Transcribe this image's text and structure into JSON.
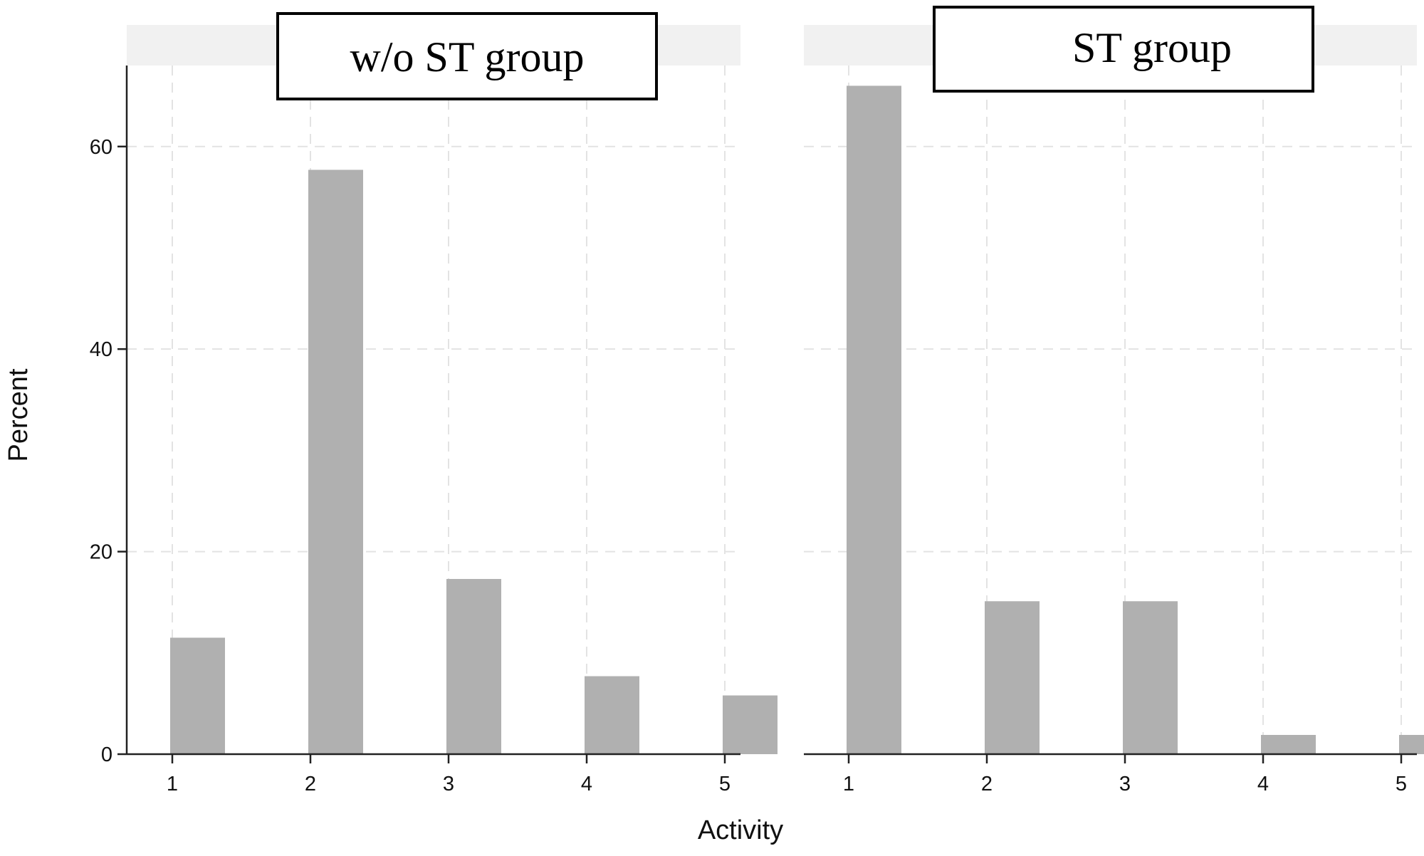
{
  "chart_data": {
    "type": "bar",
    "xlabel": "Activity",
    "ylabel": "Percent",
    "ylim": [
      0,
      68
    ],
    "yticks": [
      0,
      20,
      40,
      60
    ],
    "categories": [
      1,
      2,
      3,
      4,
      5
    ],
    "bar_color": "#b0b0b0",
    "grid": true,
    "panels": [
      {
        "title": "w/o ST group",
        "values": [
          11.5,
          57.7,
          17.3,
          7.7,
          5.8
        ]
      },
      {
        "title": "ST group",
        "values": [
          66.0,
          15.1,
          15.1,
          1.9,
          1.9
        ]
      }
    ]
  }
}
